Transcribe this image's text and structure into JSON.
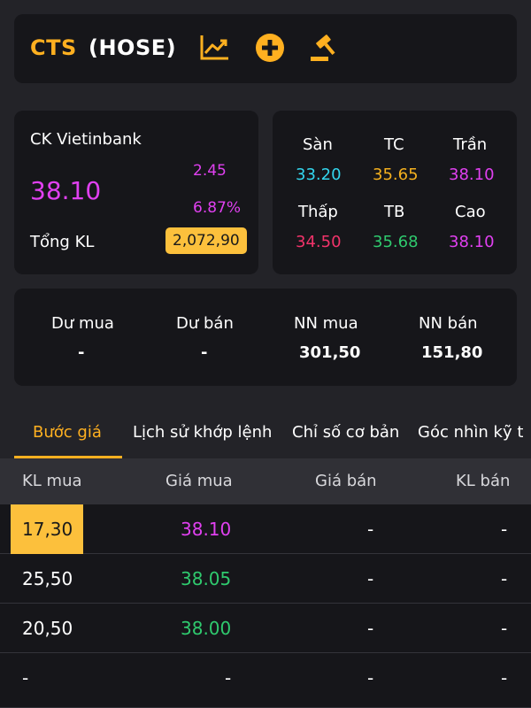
{
  "header": {
    "ticker": "CTS",
    "exchange": "(HOSE)",
    "icons": [
      "chart-trend-icon",
      "add-circle-icon",
      "auction-hammer-icon"
    ],
    "accent_color": "#ffb020"
  },
  "info": {
    "company": "CK Vietinbank",
    "price": "38.10",
    "change": "2.45",
    "change_pct": "6.87%",
    "volume_label": "Tổng KL",
    "volume": "2,072,90"
  },
  "prices": {
    "floor_label": "Sàn",
    "floor": "33.20",
    "ref_label": "TC",
    "ref": "35.65",
    "ceiling_label": "Trần",
    "ceiling": "38.10",
    "low_label": "Thấp",
    "low": "34.50",
    "avg_label": "TB",
    "avg": "35.68",
    "high_label": "Cao",
    "high": "38.10"
  },
  "flows": {
    "bid_rem_label": "Dư mua",
    "bid_rem": "-",
    "ask_rem_label": "Dư bán",
    "ask_rem": "-",
    "foreign_buy_label": "NN mua",
    "foreign_buy": "301,50",
    "foreign_sell_label": "NN bán",
    "foreign_sell": "151,80"
  },
  "tabs": [
    {
      "label": "Bước giá",
      "active": true
    },
    {
      "label": "Lịch sử khớp lệnh",
      "active": false
    },
    {
      "label": "Chỉ số cơ bản",
      "active": false
    },
    {
      "label": "Góc nhìn kỹ t",
      "active": false
    }
  ],
  "table": {
    "headers": [
      "KL mua",
      "Giá mua",
      "Giá bán",
      "KL bán"
    ],
    "rows": [
      {
        "bid_vol": "17,30",
        "bid_price": "38.10",
        "ask_price": "-",
        "ask_vol": "-"
      },
      {
        "bid_vol": "25,50",
        "bid_price": "38.05",
        "ask_price": "-",
        "ask_vol": "-"
      },
      {
        "bid_vol": "20,50",
        "bid_price": "38.00",
        "ask_price": "-",
        "ask_vol": "-"
      },
      {
        "bid_vol": "-",
        "bid_price": "-",
        "ask_price": "-",
        "ask_vol": "-"
      }
    ]
  }
}
